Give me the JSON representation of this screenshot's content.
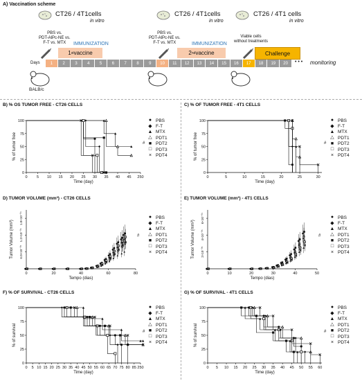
{
  "scheme": {
    "title": "A) Vaccination scheme",
    "cells1": "CT26 / 4T1cells",
    "invitro1": "in vitro",
    "cells2": "CT26 / 4T1cells",
    "invitro2": "in vitro",
    "cells3": "CT26 / 4T1 cells",
    "invitro3": "in vitro",
    "treat1": [
      "PBS vs.",
      "PDT-AlPc-NE vs.",
      "F-T vs. MTX"
    ],
    "treat2": [
      "PBS vs.",
      "PDT-AlPc-NE vs.",
      "F-T vs. MTX"
    ],
    "treat3": [
      "Viable cells",
      "without treatments"
    ],
    "immunization1": "IMMUNIZATION",
    "immunization2": "IMMUNIZATION",
    "vaccine1_pre": "1",
    "vaccine1_sup": "st",
    "vaccine1_post": " vaccine",
    "vaccine2_pre": "2",
    "vaccine2_sup": "nd",
    "vaccine2_post": " vaccine",
    "challenge": "Challenge",
    "days_label": "Days",
    "days": [
      "1",
      "2",
      "3",
      "4",
      "5",
      "6",
      "7",
      "8",
      "9",
      "10",
      "11",
      "12",
      "13",
      "14",
      "15",
      "16",
      "17",
      "18",
      "19",
      "20"
    ],
    "dots": "• • •",
    "monitoring": "monitoring",
    "mouse": "BALB/c",
    "colors": {
      "day_cell": "#9a9a9a",
      "highlight": "#f4b183",
      "challenge": "#f6b400",
      "immunization": "#2e75b6"
    }
  },
  "legend_labels": [
    "PBS",
    "F-T",
    "MTX",
    "PDT1",
    "PDT2",
    "PDT3",
    "PDT4"
  ],
  "chart_data": [
    {
      "panel": "B",
      "type": "line",
      "title": "B) % OS TUMOR FREE - CT26 CELLS",
      "xlabel": "Time (day)",
      "ylabel": "% of tumor free",
      "xticks": [
        "0",
        "5",
        "10",
        "15",
        "20",
        "25",
        "30",
        "35",
        "40",
        "45",
        "250"
      ],
      "yticks": [
        "0",
        "25",
        "50",
        "75",
        "100"
      ],
      "ylim": [
        0,
        100
      ],
      "annotation": "#",
      "series": [
        {
          "name": "PBS",
          "x": [
            0,
            25,
            25,
            30,
            30,
            35
          ],
          "y": [
            100,
            100,
            65,
            65,
            0,
            0
          ]
        },
        {
          "name": "F-T",
          "x": [
            0,
            26,
            26,
            32,
            32,
            34
          ],
          "y": [
            100,
            100,
            50,
            50,
            0,
            0
          ]
        },
        {
          "name": "MTX",
          "x": [
            0,
            34,
            34,
            39,
            39,
            46
          ],
          "y": [
            100,
            100,
            75,
            75,
            50,
            50
          ]
        },
        {
          "name": "PDT1",
          "x": [
            0,
            35,
            35,
            40,
            40,
            46
          ],
          "y": [
            100,
            100,
            50,
            50,
            33,
            33
          ]
        },
        {
          "name": "PDT2",
          "x": [
            0,
            25,
            25,
            34,
            34,
            35
          ],
          "y": [
            100,
            100,
            67,
            67,
            0,
            0
          ]
        },
        {
          "name": "PDT3",
          "x": [
            0,
            25,
            25,
            31,
            31,
            33
          ],
          "y": [
            100,
            100,
            33,
            33,
            0,
            0
          ]
        },
        {
          "name": "PDT4",
          "x": [
            0,
            24,
            24,
            29,
            29,
            34
          ],
          "y": [
            100,
            100,
            33,
            33,
            0,
            0
          ]
        }
      ]
    },
    {
      "panel": "C",
      "type": "line",
      "title": "C) % OF TUMOR FREE - 4T1 CELLS",
      "xlabel": "Time (day)",
      "ylabel": "% of tumor free",
      "xticks": [
        "0",
        "5",
        "10",
        "15",
        "20",
        "25",
        "30"
      ],
      "yticks": [
        "0",
        "25",
        "50",
        "75",
        "100"
      ],
      "xlim": [
        0,
        31
      ],
      "ylim": [
        0,
        100
      ],
      "annotation": "#",
      "series": [
        {
          "name": "PBS",
          "x": [
            0,
            22,
            22,
            23,
            23
          ],
          "y": [
            100,
            100,
            15,
            15,
            0
          ]
        },
        {
          "name": "F-T",
          "x": [
            0,
            22,
            22,
            23,
            23
          ],
          "y": [
            100,
            100,
            50,
            50,
            0
          ]
        },
        {
          "name": "MTX",
          "x": [
            0,
            22,
            22,
            24,
            24
          ],
          "y": [
            100,
            100,
            50,
            50,
            0
          ]
        },
        {
          "name": "PDT1",
          "x": [
            0,
            23,
            23,
            24,
            24,
            25,
            25
          ],
          "y": [
            100,
            100,
            65,
            65,
            30,
            30,
            0
          ]
        },
        {
          "name": "PDT2",
          "x": [
            0,
            21,
            21,
            23,
            23
          ],
          "y": [
            100,
            100,
            85,
            85,
            0
          ]
        },
        {
          "name": "PDT3",
          "x": [
            0,
            22,
            22,
            23,
            23
          ],
          "y": [
            100,
            100,
            85,
            85,
            0
          ]
        },
        {
          "name": "PDT4",
          "x": [
            0,
            23,
            23,
            25,
            25,
            30,
            30
          ],
          "y": [
            100,
            100,
            50,
            50,
            15,
            15,
            0
          ]
        }
      ]
    },
    {
      "panel": "D",
      "type": "scatter",
      "title": "D) TUMOR VOLUME (mm³) - CT26 CELLS",
      "xlabel": "Tempo (dias)",
      "ylabel": "Tumor Volume (mm³)",
      "xticks": [
        "0",
        "20",
        "40",
        "60",
        "80"
      ],
      "yticks": [
        "6.0×10⁻⁰⁵",
        "1.2×10⁻⁰⁶",
        "1.8×10⁻⁰⁶"
      ],
      "xlim": [
        0,
        80
      ],
      "ylim": [
        0,
        2000
      ],
      "annotation": "#",
      "x": [
        0,
        10,
        20,
        30,
        40,
        44,
        48,
        52,
        55,
        58,
        61,
        64,
        67,
        70,
        72
      ],
      "series": [
        {
          "name": "PBS",
          "values": [
            0,
            0,
            0,
            0,
            0,
            10,
            40,
            100,
            180,
            300,
            450,
            650,
            850,
            1000,
            1150
          ]
        },
        {
          "name": "F-T",
          "values": [
            0,
            0,
            0,
            0,
            0,
            8,
            30,
            80,
            150,
            250,
            380,
            550,
            720,
            880,
            1000
          ]
        },
        {
          "name": "MTX",
          "values": [
            0,
            0,
            0,
            0,
            0,
            5,
            20,
            60,
            100,
            180,
            260,
            360,
            450,
            520,
            580
          ]
        },
        {
          "name": "PDT1",
          "values": [
            0,
            0,
            0,
            0,
            0,
            6,
            25,
            70,
            130,
            220,
            330,
            480,
            620,
            760,
            870
          ]
        },
        {
          "name": "PDT2",
          "values": [
            0,
            0,
            0,
            0,
            0,
            12,
            45,
            110,
            200,
            330,
            500,
            700,
            900,
            1050,
            1200
          ]
        },
        {
          "name": "PDT3",
          "values": [
            0,
            0,
            0,
            0,
            0,
            9,
            35,
            90,
            170,
            280,
            420,
            600,
            780,
            940,
            1080
          ]
        },
        {
          "name": "PDT4",
          "values": [
            0,
            0,
            0,
            0,
            0,
            7,
            28,
            75,
            140,
            230,
            350,
            500,
            650,
            790,
            900
          ]
        }
      ]
    },
    {
      "panel": "E",
      "type": "scatter",
      "title": "E) TUMOR VOLUME (mm³) - 4T1 CELLS",
      "xlabel": "Tempo (dias)",
      "ylabel": "Tumor Volume (mm³)",
      "xticks": [
        "0",
        "10",
        "20",
        "30",
        "40",
        "50"
      ],
      "yticks": [
        "2×10⁻⁰⁵",
        "4×10⁻⁰⁵",
        "6×10⁻⁰⁵"
      ],
      "xlim": [
        0,
        50
      ],
      "ylim": [
        0,
        700
      ],
      "annotation": "#",
      "x": [
        0,
        10,
        20,
        24,
        27,
        30,
        32,
        34,
        36,
        38,
        40,
        42,
        44
      ],
      "series": [
        {
          "name": "PBS",
          "values": [
            0,
            0,
            0,
            2,
            8,
            20,
            40,
            70,
            110,
            160,
            230,
            330,
            420
          ]
        },
        {
          "name": "F-T",
          "values": [
            0,
            0,
            0,
            2,
            6,
            16,
            32,
            56,
            90,
            130,
            190,
            280,
            360
          ]
        },
        {
          "name": "MTX",
          "values": [
            0,
            0,
            0,
            1,
            4,
            12,
            24,
            42,
            66,
            96,
            140,
            200,
            250
          ]
        },
        {
          "name": "PDT1",
          "values": [
            0,
            0,
            0,
            2,
            7,
            18,
            36,
            62,
            100,
            145,
            210,
            300,
            390
          ]
        },
        {
          "name": "PDT2",
          "values": [
            0,
            0,
            0,
            3,
            9,
            22,
            44,
            76,
            120,
            175,
            250,
            350,
            440
          ]
        },
        {
          "name": "PDT3",
          "values": [
            0,
            0,
            0,
            2,
            6,
            15,
            30,
            52,
            84,
            122,
            175,
            250,
            320
          ]
        },
        {
          "name": "PDT4",
          "values": [
            0,
            0,
            0,
            1,
            5,
            13,
            26,
            46,
            74,
            108,
            155,
            220,
            280
          ]
        }
      ]
    },
    {
      "panel": "F",
      "type": "line",
      "title": "F) % OF SURVIVAL - CT26 CELLS",
      "xlabel": "Time (day)",
      "ylabel": "% of survival",
      "xticks": [
        "0",
        "5",
        "10",
        "15",
        "20",
        "25",
        "30",
        "35",
        "40",
        "45",
        "50",
        "55",
        "60",
        "65",
        "70",
        "75",
        "80",
        "85",
        "250"
      ],
      "yticks": [
        "0",
        "25",
        "50",
        "75",
        "100"
      ],
      "ylim": [
        0,
        100
      ],
      "annotation": "#",
      "series": [
        {
          "name": "PBS",
          "x": [
            0,
            30,
            30,
            48,
            48,
            58,
            58,
            70,
            70,
            75,
            75
          ],
          "y": [
            100,
            100,
            83,
            83,
            67,
            67,
            50,
            50,
            33,
            33,
            0
          ]
        },
        {
          "name": "F-T",
          "x": [
            0,
            28,
            28,
            45,
            45,
            55,
            55,
            66,
            66,
            72,
            72
          ],
          "y": [
            100,
            100,
            83,
            83,
            67,
            67,
            50,
            50,
            33,
            33,
            0
          ]
        },
        {
          "name": "MTX",
          "x": [
            0,
            45,
            45,
            60,
            60,
            75,
            75,
            90,
            90,
            92
          ],
          "y": [
            100,
            100,
            80,
            80,
            60,
            60,
            40,
            40,
            40,
            40
          ]
        },
        {
          "name": "PDT1",
          "x": [
            0,
            40,
            40,
            52,
            52,
            65,
            65,
            78,
            78,
            92
          ],
          "y": [
            100,
            100,
            83,
            83,
            67,
            67,
            50,
            50,
            33,
            33
          ]
        },
        {
          "name": "PDT2",
          "x": [
            0,
            35,
            35,
            50,
            50,
            62,
            62,
            74,
            74,
            80,
            80
          ],
          "y": [
            100,
            100,
            83,
            83,
            67,
            67,
            50,
            50,
            33,
            33,
            0
          ]
        },
        {
          "name": "PDT3",
          "x": [
            0,
            32,
            32,
            46,
            46,
            56,
            56,
            64,
            64,
            70,
            70
          ],
          "y": [
            100,
            100,
            83,
            83,
            67,
            67,
            50,
            50,
            17,
            17,
            0
          ]
        },
        {
          "name": "PDT4",
          "x": [
            0,
            38,
            38,
            54,
            54,
            66,
            66,
            80,
            80,
            92
          ],
          "y": [
            100,
            100,
            83,
            83,
            67,
            67,
            50,
            50,
            33,
            33
          ]
        }
      ]
    },
    {
      "panel": "G",
      "type": "line",
      "title": "G) % OF SURVIVAL - 4T1 CELLS",
      "xlabel": "Time (day)",
      "ylabel": "% of survival",
      "xticks": [
        "0",
        "5",
        "10",
        "15",
        "20",
        "25",
        "30",
        "35",
        "40",
        "45",
        "50",
        "55",
        "60"
      ],
      "yticks": [
        "0",
        "25",
        "50",
        "75",
        "100"
      ],
      "xlim": [
        0,
        61
      ],
      "ylim": [
        0,
        100
      ],
      "annotation": "#",
      "series": [
        {
          "name": "PBS",
          "x": [
            0,
            22,
            22,
            30,
            30,
            38,
            38,
            46,
            46,
            50,
            50
          ],
          "y": [
            100,
            100,
            85,
            85,
            65,
            65,
            45,
            45,
            30,
            30,
            0
          ]
        },
        {
          "name": "F-T",
          "x": [
            0,
            24,
            24,
            31,
            31,
            39,
            39,
            47,
            47,
            52,
            52
          ],
          "y": [
            100,
            100,
            85,
            85,
            60,
            60,
            45,
            45,
            20,
            20,
            0
          ]
        },
        {
          "name": "MTX",
          "x": [
            0,
            20,
            20,
            28,
            28,
            36,
            36,
            44,
            44,
            48,
            48
          ],
          "y": [
            100,
            100,
            80,
            80,
            60,
            60,
            40,
            40,
            20,
            20,
            0
          ]
        },
        {
          "name": "PDT1",
          "x": [
            0,
            25,
            25,
            32,
            32,
            40,
            40,
            50,
            50,
            55,
            55
          ],
          "y": [
            100,
            100,
            85,
            85,
            65,
            65,
            45,
            45,
            20,
            20,
            0
          ]
        },
        {
          "name": "PDT2",
          "x": [
            0,
            18,
            18,
            26,
            26,
            35,
            35,
            42,
            42,
            46,
            46
          ],
          "y": [
            100,
            100,
            85,
            85,
            55,
            55,
            40,
            40,
            20,
            20,
            0
          ]
        },
        {
          "name": "PDT3",
          "x": [
            0,
            23,
            23,
            30,
            30,
            38,
            38,
            45,
            45,
            50,
            50
          ],
          "y": [
            100,
            100,
            80,
            80,
            60,
            60,
            40,
            40,
            20,
            20,
            0
          ]
        },
        {
          "name": "PDT4",
          "x": [
            0,
            28,
            28,
            35,
            35,
            45,
            45,
            55,
            55,
            60,
            60
          ],
          "y": [
            100,
            100,
            85,
            85,
            60,
            60,
            35,
            35,
            15,
            15,
            0
          ]
        }
      ]
    }
  ]
}
